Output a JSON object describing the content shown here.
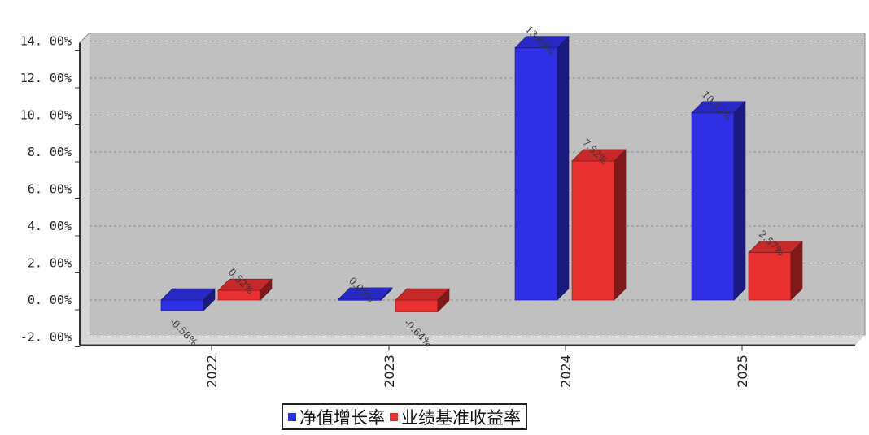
{
  "chart_data": {
    "type": "bar",
    "categories": [
      "2022",
      "2023",
      "2024",
      "2025"
    ],
    "series": [
      {
        "name": "净值增长率",
        "values": [
          -0.58,
          0.05,
          13.64,
          10.12
        ],
        "labels": [
          "-0.58%",
          "0.05%",
          "13.64%",
          "10.12%"
        ],
        "color": "#2f2fe6"
      },
      {
        "name": "业绩基准收益率",
        "values": [
          0.52,
          -0.64,
          7.52,
          2.57
        ],
        "labels": [
          "0.52%",
          "-0.64%",
          "7.52%",
          "2.57%"
        ],
        "color": "#e83030"
      }
    ],
    "ylim": [
      -2,
      14
    ],
    "yticks": [
      14,
      12,
      10,
      8,
      6,
      4,
      2,
      0,
      -2
    ],
    "ytick_labels": [
      "14. 00%",
      "12. 00%",
      "10. 00%",
      "8. 00%",
      "6. 00%",
      "4. 00%",
      "2. 00%",
      "0. 00%",
      "-2. 00%"
    ],
    "grid": true,
    "legend_position": "bottom-center",
    "plot_background": "#c0c0c0"
  }
}
